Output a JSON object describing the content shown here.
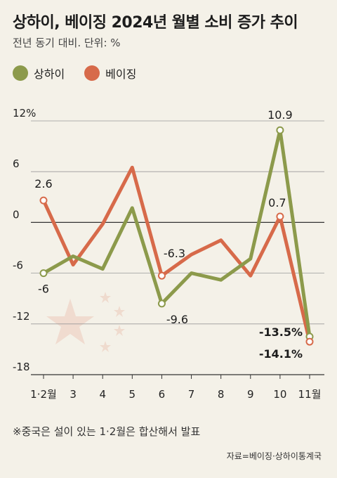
{
  "header": {
    "title": "상하이, 베이징 2024년 월별 소비 증가 추이",
    "subtitle": "전년 동기 대비. 단위: %"
  },
  "footnote": "※중국은 설이 있는 1·2월은 합산해서 발표",
  "source": "자료=베이징·상하이통계국",
  "chart_data": {
    "type": "line",
    "categories": [
      "1·2월",
      "3",
      "4",
      "5",
      "6",
      "7",
      "8",
      "9",
      "10",
      "11월"
    ],
    "series": [
      {
        "name": "상하이",
        "color": "#8c9a4b",
        "values": [
          -6,
          -4,
          -5.5,
          1.7,
          -9.6,
          -6,
          -6.8,
          -4.3,
          10.9,
          -13.5
        ]
      },
      {
        "name": "베이징",
        "color": "#d76a4a",
        "values": [
          2.6,
          -5,
          -0.2,
          6.5,
          -6.3,
          -3.8,
          -2.1,
          -6.3,
          0.7,
          -14.1
        ]
      }
    ],
    "yticks": [
      "12%",
      "6",
      "0",
      "-6",
      "-12",
      "-18"
    ],
    "ytick_values": [
      12,
      6,
      0,
      -6,
      -12,
      -18
    ],
    "ylim": [
      -18,
      12
    ],
    "data_labels": [
      {
        "series": 1,
        "index": 0,
        "text": "2.6"
      },
      {
        "series": 0,
        "index": 0,
        "text": "-6"
      },
      {
        "series": 1,
        "index": 4,
        "text": "-6.3"
      },
      {
        "series": 0,
        "index": 4,
        "text": "-9.6"
      },
      {
        "series": 0,
        "index": 8,
        "text": "10.9"
      },
      {
        "series": 1,
        "index": 8,
        "text": "0.7"
      },
      {
        "series": 0,
        "index": 9,
        "text": "-13.5%"
      },
      {
        "series": 1,
        "index": 9,
        "text": "-14.1%"
      }
    ],
    "legend_position": "top-left",
    "grid": true
  }
}
